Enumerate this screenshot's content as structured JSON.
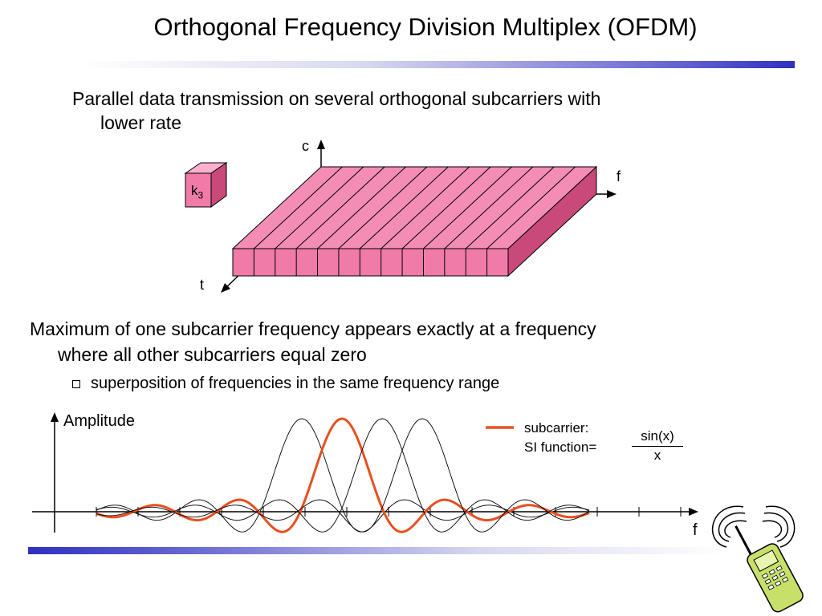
{
  "slide": {
    "title": "Orthogonal Frequency Division Multiplex (OFDM)",
    "bullet1_line1": "Parallel data transmission on several orthogonal subcarriers with",
    "bullet1_line2": "lower rate",
    "bullet2_line1": "Maximum of one subcarrier frequency appears exactly at a frequency",
    "bullet2_line2": "where all other subcarriers equal zero",
    "sub_bullet": "superposition of frequencies in the same frequency range"
  },
  "diagram3d": {
    "axis_c": "c",
    "axis_f": "f",
    "axis_t": "t",
    "cube_label": "k",
    "cube_subscript": "3",
    "slab_color": "#f07aa8",
    "subcarrier_count": 13
  },
  "plot": {
    "y_label": "Amplitude",
    "x_label": "f",
    "legend_line1": "subcarrier:",
    "legend_line2": "SI function=",
    "fraction_num": "sin(x)",
    "fraction_den": "x",
    "highlight_color": "#e8501e",
    "subcarrier_centers": [
      1,
      2,
      3,
      4
    ],
    "highlighted_subcarrier": 2
  },
  "icons": {
    "phone": "mobile-phone-icon"
  }
}
